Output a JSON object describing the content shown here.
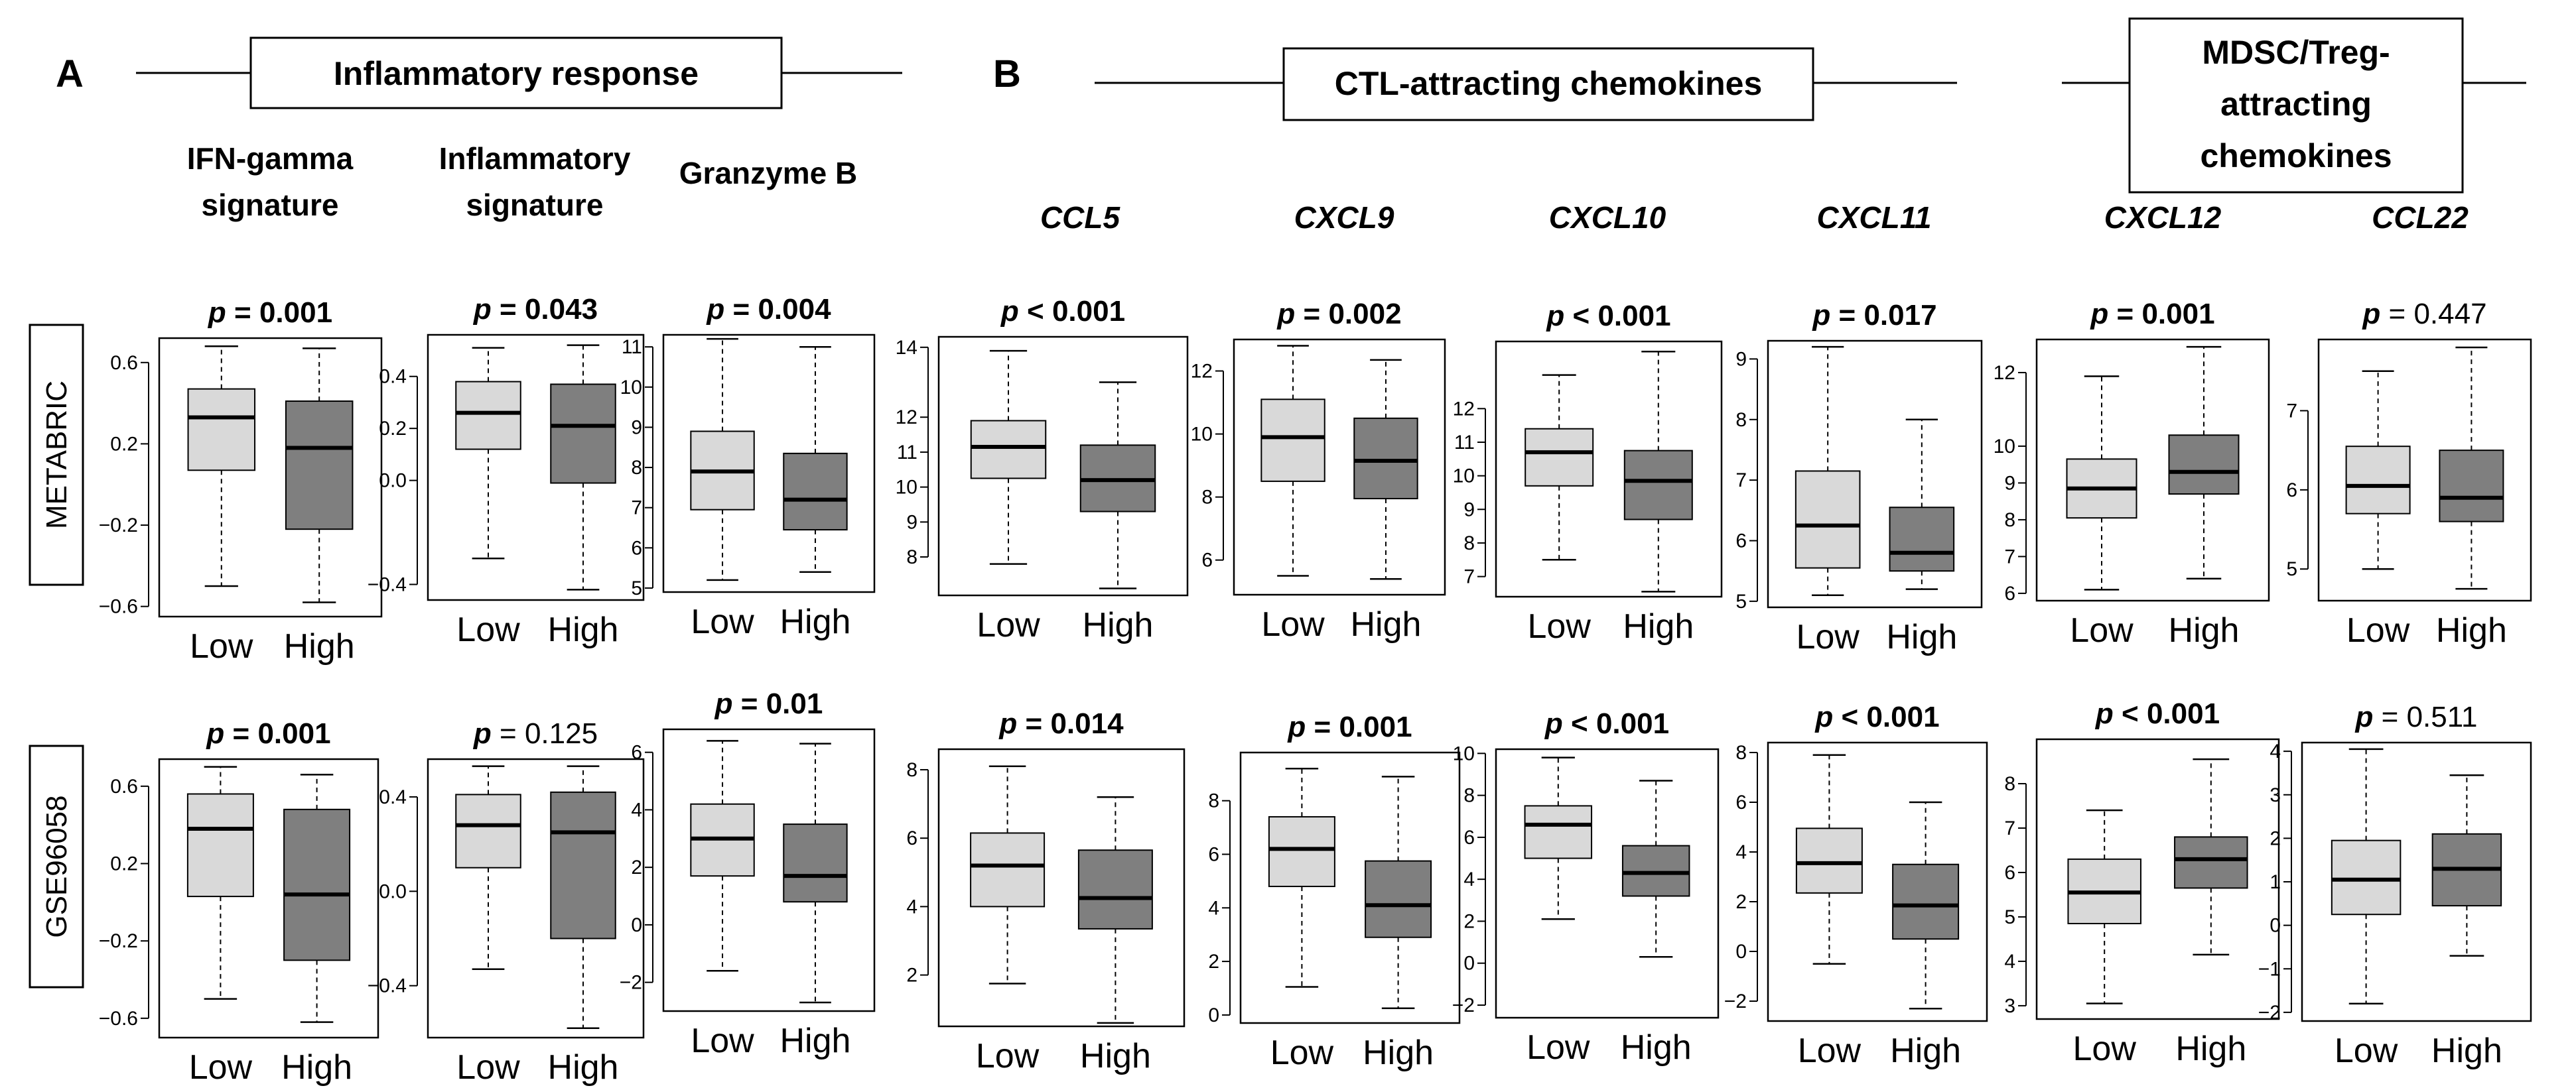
{
  "panels": {
    "a": "A",
    "b": "B"
  },
  "headers": {
    "inflammatory": "Inflammatory response",
    "ctl": "CTL-attracting chemokines",
    "mdsc_lines": [
      "MDSC/Treg-",
      "attracting",
      "chemokines"
    ]
  },
  "rows": [
    "METABRIC",
    "GSE96058"
  ],
  "columns": [
    {
      "id": "ifn",
      "title_lines": [
        "IFN-gamma",
        "signature"
      ],
      "italic": false
    },
    {
      "id": "infl",
      "title_lines": [
        "Inflammatory",
        "signature"
      ],
      "italic": false
    },
    {
      "id": "gzmb",
      "title_lines": [
        "Granzyme B"
      ],
      "italic": false
    },
    {
      "id": "ccl5",
      "title_lines": [
        "CCL5"
      ],
      "italic": true
    },
    {
      "id": "cxcl9",
      "title_lines": [
        "CXCL9"
      ],
      "italic": true
    },
    {
      "id": "cxcl10",
      "title_lines": [
        "CXCL10"
      ],
      "italic": true
    },
    {
      "id": "cxcl11",
      "title_lines": [
        "CXCL11"
      ],
      "italic": true
    },
    {
      "id": "cxcl12",
      "title_lines": [
        "CXCL12"
      ],
      "italic": true
    },
    {
      "id": "ccl22",
      "title_lines": [
        "CCL22"
      ],
      "italic": true
    }
  ],
  "colors": {
    "low_fill": "#d9d9d9",
    "high_fill": "#7f7f7f",
    "line": "#000000"
  },
  "chart_data": {
    "type": "boxplot",
    "categories": [
      "Low",
      "High"
    ],
    "plots": [
      {
        "row": "METABRIC",
        "col": "ifn",
        "p_label": "p = 0.001",
        "significant": true,
        "ylim": [
          -0.65,
          0.72
        ],
        "ticks": [
          0.6,
          0.2,
          -0.2,
          -0.6
        ],
        "tick_labels": [
          "0.6",
          "0.2",
          "−0.2",
          "−0.6"
        ],
        "low": {
          "whisker_min": -0.5,
          "q1": 0.07,
          "median": 0.33,
          "q3": 0.47,
          "whisker_max": 0.68
        },
        "high": {
          "whisker_min": -0.58,
          "q1": -0.22,
          "median": 0.18,
          "q3": 0.41,
          "whisker_max": 0.67
        }
      },
      {
        "row": "METABRIC",
        "col": "infl",
        "p_label": "p = 0.043",
        "significant": true,
        "ylim": [
          -0.46,
          0.56
        ],
        "ticks": [
          0.4,
          0.2,
          0.0,
          -0.4
        ],
        "tick_labels": [
          "0.4",
          "0.2",
          "0.0",
          "−0.4"
        ],
        "low": {
          "whisker_min": -0.3,
          "q1": 0.12,
          "median": 0.26,
          "q3": 0.38,
          "whisker_max": 0.51
        },
        "high": {
          "whisker_min": -0.42,
          "q1": -0.01,
          "median": 0.21,
          "q3": 0.37,
          "whisker_max": 0.52
        }
      },
      {
        "row": "METABRIC",
        "col": "gzmb",
        "p_label": "p = 0.004",
        "significant": true,
        "ylim": [
          4.9,
          11.3
        ],
        "ticks": [
          11,
          10,
          9,
          8,
          7,
          6,
          5
        ],
        "tick_labels": [
          "11",
          "10",
          "9",
          "8",
          "7",
          "6",
          "5"
        ],
        "low": {
          "whisker_min": 5.2,
          "q1": 6.95,
          "median": 7.9,
          "q3": 8.9,
          "whisker_max": 11.2
        },
        "high": {
          "whisker_min": 5.4,
          "q1": 6.45,
          "median": 7.2,
          "q3": 8.35,
          "whisker_max": 11.0
        }
      },
      {
        "row": "METABRIC",
        "col": "ccl5",
        "p_label": "p < 0.001",
        "significant": true,
        "ylim": [
          6.9,
          14.3
        ],
        "ticks": [
          14,
          12,
          11,
          10,
          9,
          8
        ],
        "tick_labels": [
          "14",
          "12",
          "11",
          "10",
          "9",
          "8"
        ],
        "low": {
          "whisker_min": 7.8,
          "q1": 10.25,
          "median": 11.15,
          "q3": 11.9,
          "whisker_max": 13.9
        },
        "high": {
          "whisker_min": 7.1,
          "q1": 9.3,
          "median": 10.2,
          "q3": 11.2,
          "whisker_max": 13.0
        }
      },
      {
        "row": "METABRIC",
        "col": "cxcl9",
        "p_label": "p = 0.002",
        "significant": true,
        "ylim": [
          4.9,
          13.0
        ],
        "ticks": [
          12,
          10,
          8,
          6
        ],
        "tick_labels": [
          "12",
          "10",
          "8",
          "6"
        ],
        "low": {
          "whisker_min": 5.5,
          "q1": 8.5,
          "median": 9.9,
          "q3": 11.1,
          "whisker_max": 12.8
        },
        "high": {
          "whisker_min": 5.4,
          "q1": 7.95,
          "median": 9.15,
          "q3": 10.5,
          "whisker_max": 12.35
        }
      },
      {
        "row": "METABRIC",
        "col": "cxcl10",
        "p_label": "p < 0.001",
        "significant": true,
        "ylim": [
          6.4,
          14.0
        ],
        "ticks": [
          12,
          11,
          10,
          9,
          8,
          7
        ],
        "tick_labels": [
          "12",
          "11",
          "10",
          "9",
          "8",
          "7"
        ],
        "low": {
          "whisker_min": 7.5,
          "q1": 9.7,
          "median": 10.7,
          "q3": 11.4,
          "whisker_max": 13.0
        },
        "high": {
          "whisker_min": 6.55,
          "q1": 8.7,
          "median": 9.85,
          "q3": 10.75,
          "whisker_max": 13.7
        }
      },
      {
        "row": "METABRIC",
        "col": "cxcl11",
        "p_label": "p = 0.017",
        "significant": true,
        "ylim": [
          4.9,
          9.3
        ],
        "ticks": [
          9,
          8,
          7,
          6,
          5
        ],
        "tick_labels": [
          "9",
          "8",
          "7",
          "6",
          "5"
        ],
        "low": {
          "whisker_min": 5.1,
          "q1": 5.55,
          "median": 6.25,
          "q3": 7.15,
          "whisker_max": 9.2
        },
        "high": {
          "whisker_min": 5.2,
          "q1": 5.5,
          "median": 5.8,
          "q3": 6.55,
          "whisker_max": 8.0
        }
      },
      {
        "row": "METABRIC",
        "col": "cxcl12",
        "p_label": "p = 0.001",
        "significant": true,
        "ylim": [
          5.8,
          12.9
        ],
        "ticks": [
          12,
          10,
          9,
          8,
          7,
          6
        ],
        "tick_labels": [
          "12",
          "10",
          "9",
          "8",
          "7",
          "6"
        ],
        "low": {
          "whisker_min": 6.1,
          "q1": 8.05,
          "median": 8.85,
          "q3": 9.65,
          "whisker_max": 11.9
        },
        "high": {
          "whisker_min": 6.4,
          "q1": 8.7,
          "median": 9.3,
          "q3": 10.3,
          "whisker_max": 12.7
        }
      },
      {
        "row": "METABRIC",
        "col": "ccl22",
        "p_label": "p = 0.447",
        "significant": false,
        "ylim": [
          4.6,
          7.9
        ],
        "ticks": [
          7,
          6,
          5
        ],
        "tick_labels": [
          "7",
          "6",
          "5"
        ],
        "low": {
          "whisker_min": 5.0,
          "q1": 5.7,
          "median": 6.05,
          "q3": 6.55,
          "whisker_max": 7.5
        },
        "high": {
          "whisker_min": 4.75,
          "q1": 5.6,
          "median": 5.9,
          "q3": 6.5,
          "whisker_max": 7.8
        }
      },
      {
        "row": "GSE96058",
        "col": "ifn",
        "p_label": "p = 0.001",
        "significant": true,
        "ylim": [
          -0.7,
          0.74
        ],
        "ticks": [
          0.6,
          0.2,
          -0.2,
          -0.6
        ],
        "tick_labels": [
          "0.6",
          "0.2",
          "−0.2",
          "−0.6"
        ],
        "low": {
          "whisker_min": -0.5,
          "q1": 0.03,
          "median": 0.38,
          "q3": 0.56,
          "whisker_max": 0.7
        },
        "high": {
          "whisker_min": -0.62,
          "q1": -0.3,
          "median": 0.04,
          "q3": 0.48,
          "whisker_max": 0.66
        }
      },
      {
        "row": "GSE96058",
        "col": "infl",
        "p_label": "p = 0.125",
        "significant": false,
        "ylim": [
          -0.62,
          0.56
        ],
        "ticks": [
          0.4,
          0.0,
          -0.4
        ],
        "tick_labels": [
          "0.4",
          "0.0",
          "−0.4"
        ],
        "low": {
          "whisker_min": -0.33,
          "q1": 0.1,
          "median": 0.28,
          "q3": 0.41,
          "whisker_max": 0.53
        },
        "high": {
          "whisker_min": -0.58,
          "q1": -0.2,
          "median": 0.25,
          "q3": 0.42,
          "whisker_max": 0.53
        }
      },
      {
        "row": "GSE96058",
        "col": "gzmb",
        "p_label": "p = 0.01",
        "significant": true,
        "ylim": [
          -3.0,
          6.8
        ],
        "ticks": [
          6,
          4,
          2,
          0,
          -2
        ],
        "tick_labels": [
          "6",
          "4",
          "2",
          "0",
          "−2"
        ],
        "low": {
          "whisker_min": -1.6,
          "q1": 1.7,
          "median": 3.0,
          "q3": 4.2,
          "whisker_max": 6.4
        },
        "high": {
          "whisker_min": -2.7,
          "q1": 0.8,
          "median": 1.7,
          "q3": 3.5,
          "whisker_max": 6.3
        }
      },
      {
        "row": "GSE96058",
        "col": "ccl5",
        "p_label": "p = 0.014",
        "significant": true,
        "ylim": [
          0.5,
          8.6
        ],
        "ticks": [
          8,
          6,
          4,
          2
        ],
        "tick_labels": [
          "8",
          "6",
          "4",
          "2"
        ],
        "low": {
          "whisker_min": 1.75,
          "q1": 4.0,
          "median": 5.2,
          "q3": 6.15,
          "whisker_max": 8.1
        },
        "high": {
          "whisker_min": 0.6,
          "q1": 3.35,
          "median": 4.25,
          "q3": 5.65,
          "whisker_max": 7.2
        }
      },
      {
        "row": "GSE96058",
        "col": "cxcl9",
        "p_label": "p = 0.001",
        "significant": true,
        "ylim": [
          -0.3,
          9.8
        ],
        "ticks": [
          8,
          6,
          4,
          2,
          0
        ],
        "tick_labels": [
          "8",
          "6",
          "4",
          "2",
          "0"
        ],
        "low": {
          "whisker_min": 1.05,
          "q1": 4.8,
          "median": 6.2,
          "q3": 7.4,
          "whisker_max": 9.2
        },
        "high": {
          "whisker_min": 0.25,
          "q1": 2.9,
          "median": 4.1,
          "q3": 5.75,
          "whisker_max": 8.9
        }
      },
      {
        "row": "GSE96058",
        "col": "cxcl10",
        "p_label": "p < 0.001",
        "significant": true,
        "ylim": [
          -2.6,
          10.2
        ],
        "ticks": [
          10,
          8,
          6,
          4,
          2,
          0,
          -2
        ],
        "tick_labels": [
          "10",
          "8",
          "6",
          "4",
          "2",
          "0",
          "−2"
        ],
        "low": {
          "whisker_min": 2.1,
          "q1": 5.0,
          "median": 6.6,
          "q3": 7.5,
          "whisker_max": 9.8
        },
        "high": {
          "whisker_min": 0.3,
          "q1": 3.2,
          "median": 4.3,
          "q3": 5.6,
          "whisker_max": 8.7
        }
      },
      {
        "row": "GSE96058",
        "col": "cxcl11",
        "p_label": "p < 0.001",
        "significant": true,
        "ylim": [
          -2.8,
          8.4
        ],
        "ticks": [
          8,
          6,
          4,
          2,
          0,
          -2
        ],
        "tick_labels": [
          "8",
          "6",
          "4",
          "2",
          "0",
          "−2"
        ],
        "low": {
          "whisker_min": -0.5,
          "q1": 2.35,
          "median": 3.55,
          "q3": 4.95,
          "whisker_max": 7.9
        },
        "high": {
          "whisker_min": -2.3,
          "q1": 0.5,
          "median": 1.85,
          "q3": 3.5,
          "whisker_max": 6.0
        }
      },
      {
        "row": "GSE96058",
        "col": "cxcl12",
        "p_label": "p < 0.001",
        "significant": true,
        "ylim": [
          2.7,
          9.0
        ],
        "ticks": [
          8,
          7,
          6,
          5,
          4,
          3
        ],
        "tick_labels": [
          "8",
          "7",
          "6",
          "5",
          "4",
          "3"
        ],
        "low": {
          "whisker_min": 3.05,
          "q1": 4.85,
          "median": 5.55,
          "q3": 6.3,
          "whisker_max": 7.4
        },
        "high": {
          "whisker_min": 4.15,
          "q1": 5.65,
          "median": 6.3,
          "q3": 6.8,
          "whisker_max": 8.55
        }
      },
      {
        "row": "GSE96058",
        "col": "ccl22",
        "p_label": "p = 0.511",
        "significant": false,
        "ylim": [
          -2.2,
          4.2
        ],
        "ticks": [
          4,
          3,
          2,
          1,
          0,
          -1,
          -2
        ],
        "tick_labels": [
          "4",
          "3",
          "2",
          "1",
          "0",
          "−1",
          "−2"
        ],
        "low": {
          "whisker_min": -1.8,
          "q1": 0.25,
          "median": 1.05,
          "q3": 1.95,
          "whisker_max": 4.05
        },
        "high": {
          "whisker_min": -0.7,
          "q1": 0.45,
          "median": 1.3,
          "q3": 2.1,
          "whisker_max": 3.45
        }
      }
    ]
  }
}
